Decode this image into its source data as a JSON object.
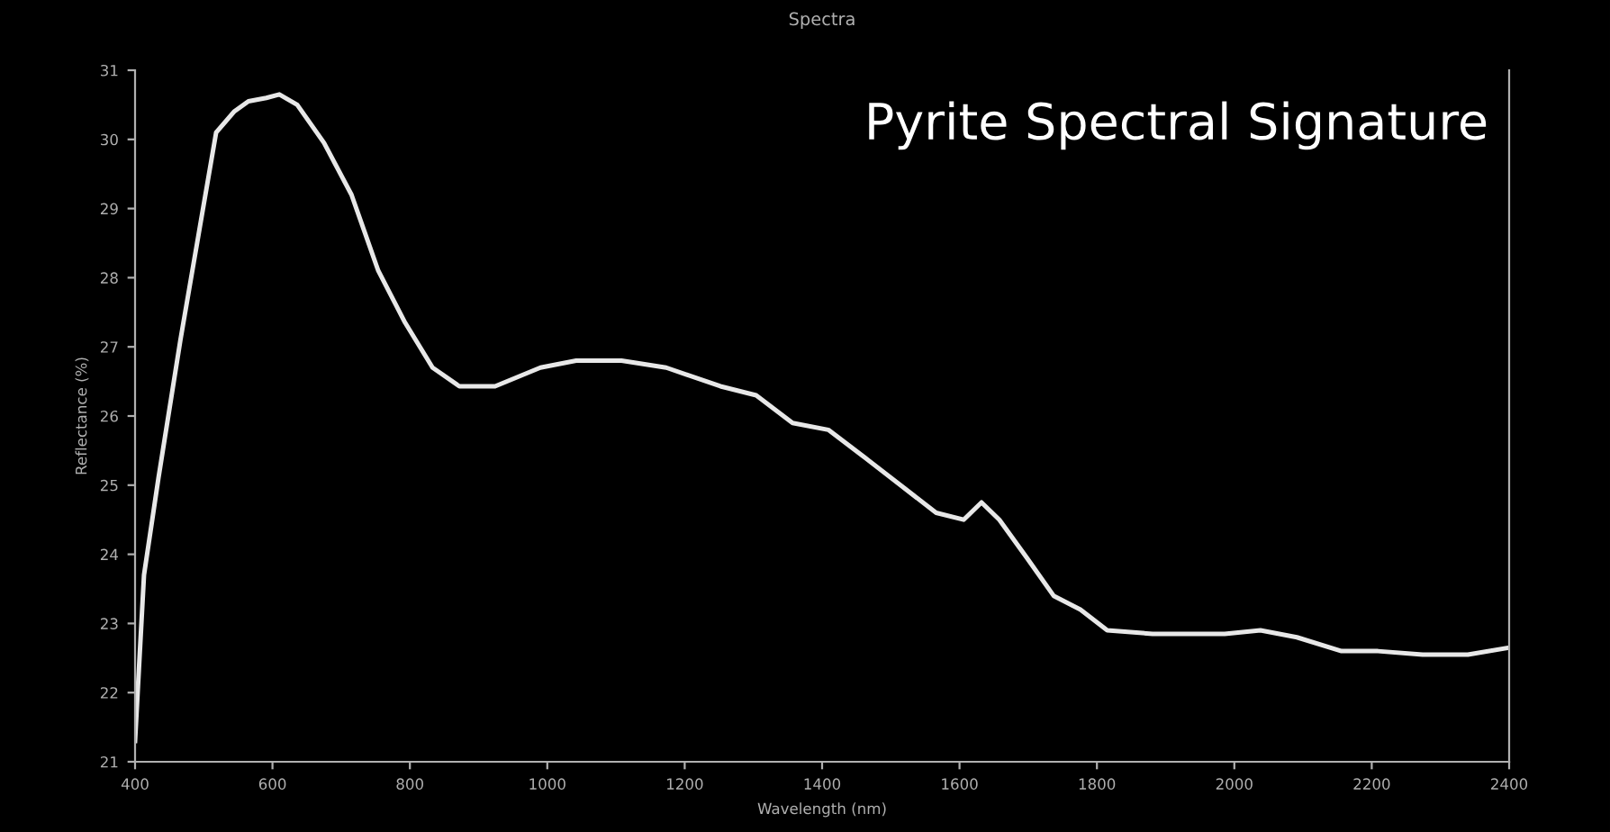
{
  "chart_data": {
    "type": "line",
    "title": "Spectra",
    "xlabel": "Wavelength (nm)",
    "ylabel": "Reflectance (%)",
    "annotations": [
      "Pyrite Spectral Signature"
    ],
    "x": [
      400,
      413,
      434,
      466,
      492,
      518,
      544,
      565,
      591,
      610,
      636,
      675,
      715,
      754,
      793,
      833,
      872,
      924,
      990,
      1042,
      1108,
      1173,
      1252,
      1304,
      1357,
      1409,
      1462,
      1514,
      1566,
      1606,
      1632,
      1658,
      1698,
      1737,
      1776,
      1815,
      1881,
      1986,
      2038,
      2091,
      2156,
      2209,
      2274,
      2340,
      2400
    ],
    "series": [
      {
        "color": "#e8e8e8",
        "values": [
          21.3,
          23.7,
          25.1,
          27.1,
          28.6,
          30.1,
          30.4,
          30.55,
          30.6,
          30.65,
          30.5,
          29.95,
          29.2,
          28.1,
          27.35,
          26.7,
          26.43,
          26.43,
          26.7,
          26.8,
          26.8,
          26.7,
          26.43,
          26.3,
          25.9,
          25.8,
          25.4,
          25.0,
          24.6,
          24.5,
          24.75,
          24.5,
          23.95,
          23.4,
          23.2,
          22.9,
          22.85,
          22.85,
          22.9,
          22.8,
          22.6,
          22.6,
          22.55,
          22.55,
          22.65
        ]
      }
    ],
    "xlim": [
      400,
      2400
    ],
    "ylim": [
      21,
      31
    ],
    "xticks": [
      400,
      600,
      800,
      1000,
      1200,
      1400,
      1600,
      1800,
      2000,
      2200,
      2400
    ],
    "yticks": [
      21,
      22,
      23,
      24,
      25,
      26,
      27,
      28,
      29,
      30,
      31
    ],
    "grid": false,
    "legend": false,
    "marker": "none",
    "line_style": "solid"
  }
}
